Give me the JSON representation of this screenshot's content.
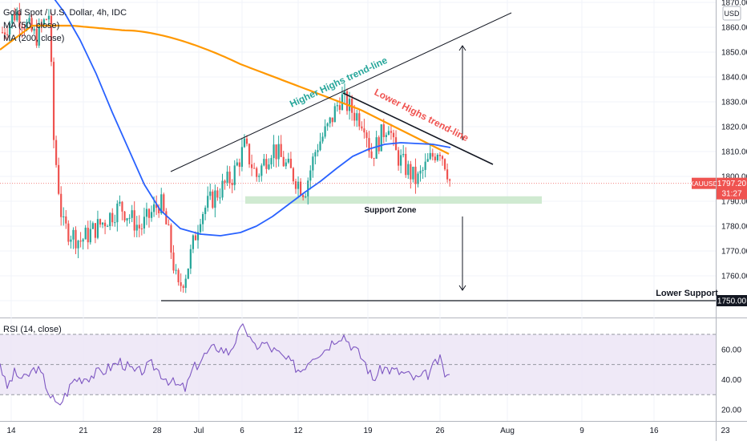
{
  "header": {
    "symbol_line": "Gold Spot / U.S. Dollar, 4h, IDC",
    "ma1_label": "MA (50, close)",
    "ma2_label": "MA (200, close)"
  },
  "rsi": {
    "label": "RSI (14, close)",
    "levels": [
      70,
      50,
      30
    ],
    "ticks": [
      20,
      40,
      60
    ]
  },
  "price_axis": {
    "currency": "USD",
    "ticks": [
      "1870.00",
      "1860.00",
      "1850.00",
      "1840.00",
      "1830.00",
      "1820.00",
      "1810.00",
      "1800.00",
      "1790.00",
      "1780.00",
      "1770.00",
      "1760.00",
      "1750.00"
    ],
    "last_symbol": "XAUUSD",
    "last_price": "1797.20",
    "countdown": "31:27",
    "level_badge": "1750.00"
  },
  "time_axis": {
    "labels": [
      "14",
      "21",
      "28",
      "Jul",
      "6",
      "12",
      "19",
      "26",
      "Aug",
      "9",
      "16",
      "23"
    ]
  },
  "annotations": {
    "higher_highs": "Higher Highs trend-line",
    "lower_highs": "Lower Highs trend-line",
    "support_zone": "Support Zone",
    "lower_support": "Lower Support"
  },
  "colors": {
    "up": "#26a69a",
    "down": "#ef5350",
    "ma50": "#2962ff",
    "ma200": "#ff9800",
    "rsi_line": "#7e57c2",
    "rsi_band": "#ede7f6",
    "support_zone": "#c8e6c9",
    "higher_highs_text": "#26a69a",
    "lower_highs_text": "#ef5350",
    "price_badge": "#ef5350"
  },
  "chart_data": {
    "type": "candlestick",
    "price_range": [
      1745,
      1875
    ],
    "support_zone": [
      1789,
      1792
    ],
    "lower_support": 1750,
    "last_price": 1797.2
  }
}
